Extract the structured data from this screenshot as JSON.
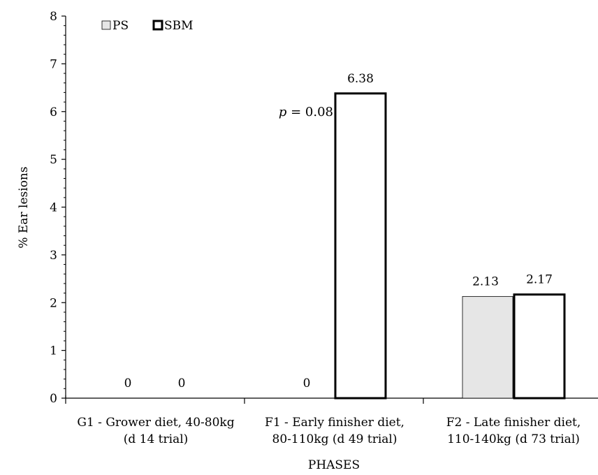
{
  "chart_data": {
    "type": "bar",
    "title": "",
    "xlabel": "PHASES",
    "ylabel": "% Ear lesions",
    "ylim": [
      0,
      8
    ],
    "yticks": [
      0,
      1,
      2,
      3,
      4,
      5,
      6,
      7,
      8
    ],
    "grid": false,
    "legend_position": "top-left",
    "categories": [
      [
        "G1 - Grower diet, 40-80kg",
        "(d 14 trial)"
      ],
      [
        "F1 - Early finisher diet,",
        "80-110kg (d 49 trial)"
      ],
      [
        "F2 - Late finisher diet,",
        "110-140kg (d 73 trial)"
      ]
    ],
    "series": [
      {
        "name": "PS",
        "values": [
          0,
          0,
          2.13
        ],
        "labels": [
          "0",
          "0",
          "2.13"
        ],
        "fill": "#e6e6e6",
        "stroke": "#000000"
      },
      {
        "name": "SBM",
        "values": [
          0,
          6.38,
          2.17
        ],
        "labels": [
          "0",
          "6.38",
          "2.17"
        ],
        "fill": "#ffffff",
        "stroke": "#000000"
      }
    ],
    "annotations": [
      {
        "category_index": 1,
        "p_symbol": "p",
        "p_text": " = 0.08"
      }
    ]
  }
}
